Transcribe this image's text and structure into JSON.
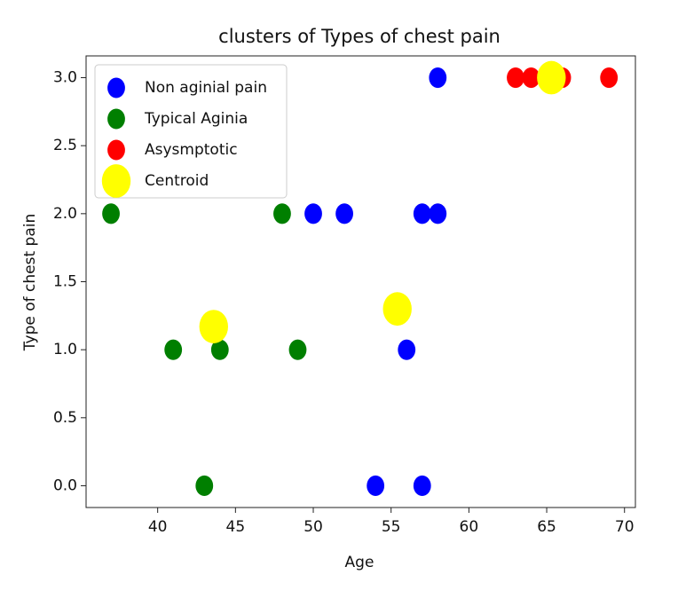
{
  "chart_data": {
    "type": "scatter",
    "title": "clusters of Types of chest pain",
    "x_label": "Age",
    "y_label": "Type of chest pain",
    "xlim": [
      35.4,
      70.7
    ],
    "ylim": [
      -0.16,
      3.16
    ],
    "xticks": [
      40,
      45,
      50,
      55,
      60,
      65,
      70
    ],
    "yticks": [
      {
        "value": 0,
        "label": "0.0"
      },
      {
        "value": 0.5,
        "label": "0.5"
      },
      {
        "value": 1,
        "label": "1.0"
      },
      {
        "value": 1.5,
        "label": "1.5"
      },
      {
        "value": 2,
        "label": "2.0"
      },
      {
        "value": 2.5,
        "label": "2.5"
      },
      {
        "value": 3,
        "label": "3.0"
      }
    ],
    "grid": false,
    "legend": "upper left",
    "series": [
      {
        "name": "Non aginial pain",
        "color": "#0000ff",
        "marker_size": 11,
        "x": [
          58,
          50,
          52,
          57,
          58,
          56,
          54,
          57
        ],
        "values": [
          3,
          2,
          2,
          2,
          2,
          1,
          0,
          0
        ]
      },
      {
        "name": "Typical Aginia",
        "color": "#007f00",
        "marker_size": 11,
        "x": [
          37,
          48,
          41,
          44,
          49,
          43
        ],
        "values": [
          2,
          2,
          1,
          1,
          1,
          0
        ]
      },
      {
        "name": "Asysmptotic",
        "color": "#ff0000",
        "marker_size": 11,
        "x": [
          63,
          64,
          66,
          69
        ],
        "values": [
          3,
          3,
          3,
          3
        ]
      },
      {
        "name": "Centroid",
        "color": "#ffff00",
        "marker_size": 18,
        "x": [
          65.3,
          43.6,
          55.4
        ],
        "values": [
          3.0,
          1.17,
          1.3
        ]
      }
    ]
  }
}
